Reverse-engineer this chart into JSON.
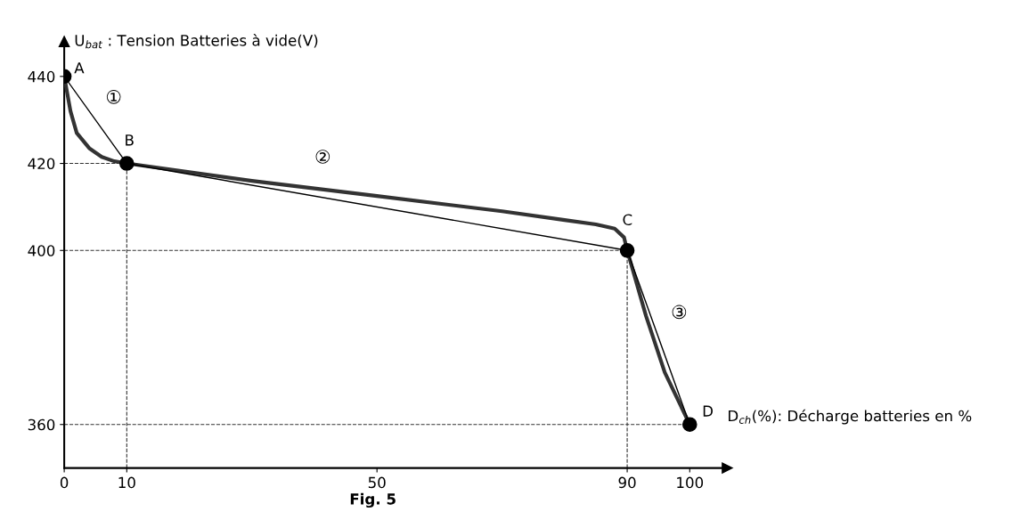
{
  "chart_data": {
    "type": "line",
    "title": "Fig. 5",
    "xlabel": "D$_{ch}$(%): Décharge batteries en %",
    "ylabel": "U$_{bat}$ : Tension Batteries à vide(V)",
    "x": [
      0,
      10,
      90,
      100
    ],
    "series": [
      {
        "color": "#333333",
        "x": [
          0,
          1,
          2,
          4,
          6,
          8,
          10,
          30,
          50,
          70,
          80,
          85,
          88,
          89.5,
          90,
          93,
          96,
          100
        ],
        "values": [
          440,
          432,
          427,
          423.5,
          421.5,
          420.5,
          420,
          416,
          412.5,
          409,
          407,
          406,
          405,
          403,
          400,
          385,
          372,
          360
        ],
        "marker": "none",
        "line_style": "solid"
      },
      {
        "color": "#000000",
        "values": [
          440,
          420,
          400,
          360
        ],
        "marker": "circle",
        "line_style": "solid"
      }
    ],
    "xlim": [
      0,
      106
    ],
    "ylim": [
      350,
      448
    ],
    "xticks": [
      0,
      10,
      50,
      90,
      100
    ],
    "yticks": [
      360,
      400,
      420,
      440
    ],
    "grid": false,
    "legend": false,
    "ref_lines": [
      {
        "axis": "y",
        "value": 420,
        "line_style": "dashed",
        "color": "#333333"
      },
      {
        "axis": "y",
        "value": 400,
        "line_style": "dashed",
        "color": "#333333"
      },
      {
        "axis": "y",
        "value": 360,
        "line_style": "dashed",
        "color": "#333333"
      },
      {
        "axis": "x",
        "value": 10,
        "line_style": "dashed",
        "color": "#333333"
      },
      {
        "axis": "x",
        "value": 90,
        "line_style": "dashed",
        "color": "#333333"
      }
    ],
    "annotations": [
      {
        "text": "A",
        "x": 0,
        "y": 440
      },
      {
        "text": "B",
        "x": 10,
        "y": 420
      },
      {
        "text": "C",
        "x": 90,
        "y": 400
      },
      {
        "text": "D",
        "x": 100,
        "y": 360
      },
      {
        "text": "①",
        "x": 5,
        "y": 430
      },
      {
        "text": "②",
        "x": 40,
        "y": 414
      },
      {
        "text": "③",
        "x": 95,
        "y": 380
      }
    ]
  }
}
